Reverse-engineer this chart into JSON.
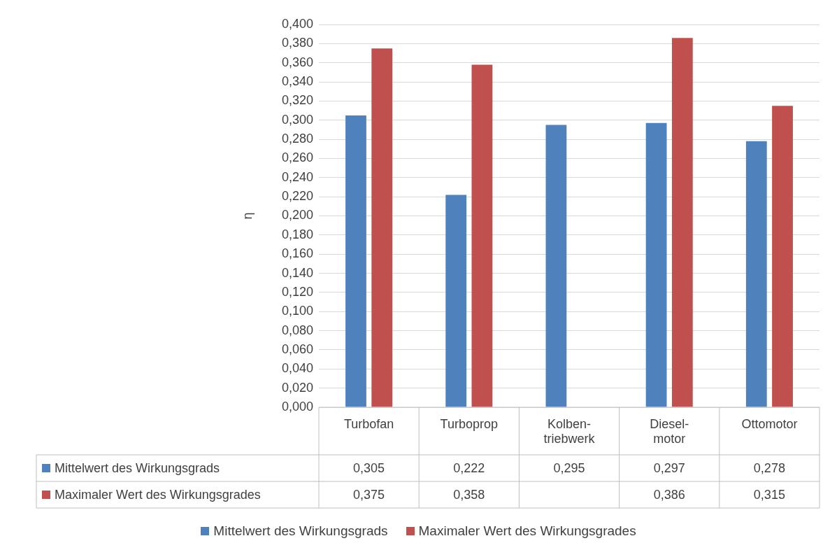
{
  "chart_data": {
    "type": "bar",
    "ylabel": "η",
    "categories": [
      "Turbofan",
      "Turboprop",
      "Kolben-triebwerk",
      "Diesel-motor",
      "Ottomotor"
    ],
    "series": [
      {
        "name": "Mittelwert des Wirkungsgrads",
        "color": "#4f81bd",
        "values": [
          0.305,
          0.222,
          0.295,
          0.297,
          0.278
        ],
        "value_labels": [
          "0,305",
          "0,222",
          "0,295",
          "0,297",
          "0,278"
        ]
      },
      {
        "name": "Maximaler Wert des Wirkungsgrades",
        "color": "#c0504d",
        "values": [
          0.375,
          0.358,
          null,
          0.386,
          0.315
        ],
        "value_labels": [
          "0,375",
          "0,358",
          null,
          "0,386",
          "0,315"
        ]
      }
    ],
    "ylim": [
      0,
      0.4
    ],
    "yticks": [
      {
        "value": 0,
        "label": "0,000"
      },
      {
        "value": 0.02,
        "label": "0,020"
      },
      {
        "value": 0.04,
        "label": "0,040"
      },
      {
        "value": 0.06,
        "label": "0,060"
      },
      {
        "value": 0.08,
        "label": "0,080"
      },
      {
        "value": 0.1,
        "label": "0,100"
      },
      {
        "value": 0.12,
        "label": "0,120"
      },
      {
        "value": 0.14,
        "label": "0,140"
      },
      {
        "value": 0.16,
        "label": "0,160"
      },
      {
        "value": 0.18,
        "label": "0,180"
      },
      {
        "value": 0.2,
        "label": "0,200"
      },
      {
        "value": 0.22,
        "label": "0,220"
      },
      {
        "value": 0.24,
        "label": "0,240"
      },
      {
        "value": 0.26,
        "label": "0,260"
      },
      {
        "value": 0.28,
        "label": "0,280"
      },
      {
        "value": 0.3,
        "label": "0,300"
      },
      {
        "value": 0.32,
        "label": "0,320"
      },
      {
        "value": 0.34,
        "label": "0,340"
      },
      {
        "value": 0.36,
        "label": "0,360"
      },
      {
        "value": 0.38,
        "label": "0,380"
      },
      {
        "value": 0.4,
        "label": "0,400"
      }
    ],
    "grid": "y",
    "legend": "bottom"
  }
}
